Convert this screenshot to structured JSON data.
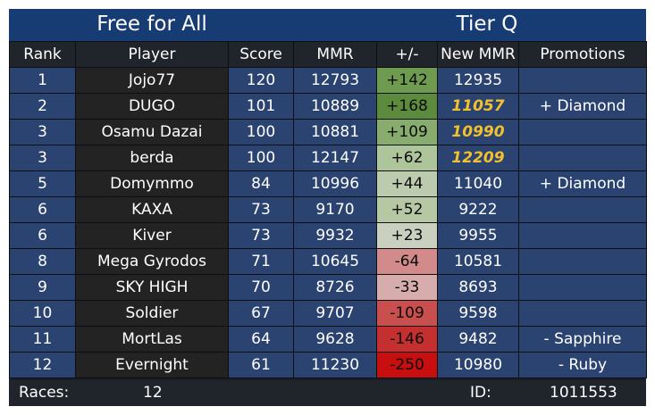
{
  "header": {
    "mode": "Free for All",
    "tier": "Tier Q"
  },
  "columns": [
    "Rank",
    "Player",
    "Score",
    "MMR",
    "+/-",
    "New MMR",
    "Promotions"
  ],
  "colors": {
    "title_bar": "#173b73",
    "row_bg": "#2b4370",
    "player_bg": "#232323",
    "rank_up_text": "#f3c12d",
    "diamond": "#a9cdee",
    "sapphire": "#2e6ee0",
    "ruby": "#d0245a"
  },
  "rows": [
    {
      "rank": "1",
      "player": "Jojo77",
      "score": "120",
      "mmr": "12793",
      "change": "+142",
      "change_color": "#6f9b50",
      "new_mmr": "12935",
      "rank_up": false,
      "promotion": "",
      "promotion_tier": ""
    },
    {
      "rank": "2",
      "player": "DUGO",
      "score": "101",
      "mmr": "10889",
      "change": "+168",
      "change_color": "#5c8b3e",
      "new_mmr": "11057",
      "rank_up": true,
      "promotion": "+ Diamond",
      "promotion_tier": "diamond"
    },
    {
      "rank": "3",
      "player": "Osamu Dazai",
      "score": "100",
      "mmr": "10881",
      "change": "+109",
      "change_color": "#88ab6e",
      "new_mmr": "10990",
      "rank_up": true,
      "promotion": "",
      "promotion_tier": ""
    },
    {
      "rank": "3",
      "player": "berda",
      "score": "100",
      "mmr": "12147",
      "change": "+62",
      "change_color": "#aec49a",
      "new_mmr": "12209",
      "rank_up": true,
      "promotion": "",
      "promotion_tier": ""
    },
    {
      "rank": "5",
      "player": "Domymmo",
      "score": "84",
      "mmr": "10996",
      "change": "+44",
      "change_color": "#bccbad",
      "new_mmr": "11040",
      "rank_up": false,
      "promotion": "+ Diamond",
      "promotion_tier": "diamond"
    },
    {
      "rank": "6",
      "player": "KAXA",
      "score": "73",
      "mmr": "9170",
      "change": "+52",
      "change_color": "#b5c7a3",
      "new_mmr": "9222",
      "rank_up": false,
      "promotion": "",
      "promotion_tier": ""
    },
    {
      "rank": "6",
      "player": "Kiver",
      "score": "73",
      "mmr": "9932",
      "change": "+23",
      "change_color": "#c9d0c0",
      "new_mmr": "9955",
      "rank_up": false,
      "promotion": "",
      "promotion_tier": ""
    },
    {
      "rank": "8",
      "player": "Mega Gyrodos",
      "score": "71",
      "mmr": "10645",
      "change": "-64",
      "change_color": "#d28a8a",
      "new_mmr": "10581",
      "rank_up": false,
      "promotion": "",
      "promotion_tier": ""
    },
    {
      "rank": "9",
      "player": "SKY HIGH",
      "score": "70",
      "mmr": "8726",
      "change": "-33",
      "change_color": "#d6acac",
      "new_mmr": "8693",
      "rank_up": false,
      "promotion": "",
      "promotion_tier": ""
    },
    {
      "rank": "10",
      "player": "Soldier",
      "score": "67",
      "mmr": "9707",
      "change": "-109",
      "change_color": "#c94e4e",
      "new_mmr": "9598",
      "rank_up": false,
      "promotion": "",
      "promotion_tier": ""
    },
    {
      "rank": "11",
      "player": "MortLas",
      "score": "64",
      "mmr": "9628",
      "change": "-146",
      "change_color": "#c43030",
      "new_mmr": "9482",
      "rank_up": false,
      "promotion": "- Sapphire",
      "promotion_tier": "sapphire"
    },
    {
      "rank": "12",
      "player": "Evernight",
      "score": "61",
      "mmr": "11230",
      "change": "-250",
      "change_color": "#c80f0f",
      "new_mmr": "10980",
      "rank_up": false,
      "promotion": "- Ruby",
      "promotion_tier": "ruby"
    }
  ],
  "footer": {
    "races_label": "Races:",
    "races_value": "12",
    "id_label": "ID:",
    "id_value": "1011553"
  }
}
